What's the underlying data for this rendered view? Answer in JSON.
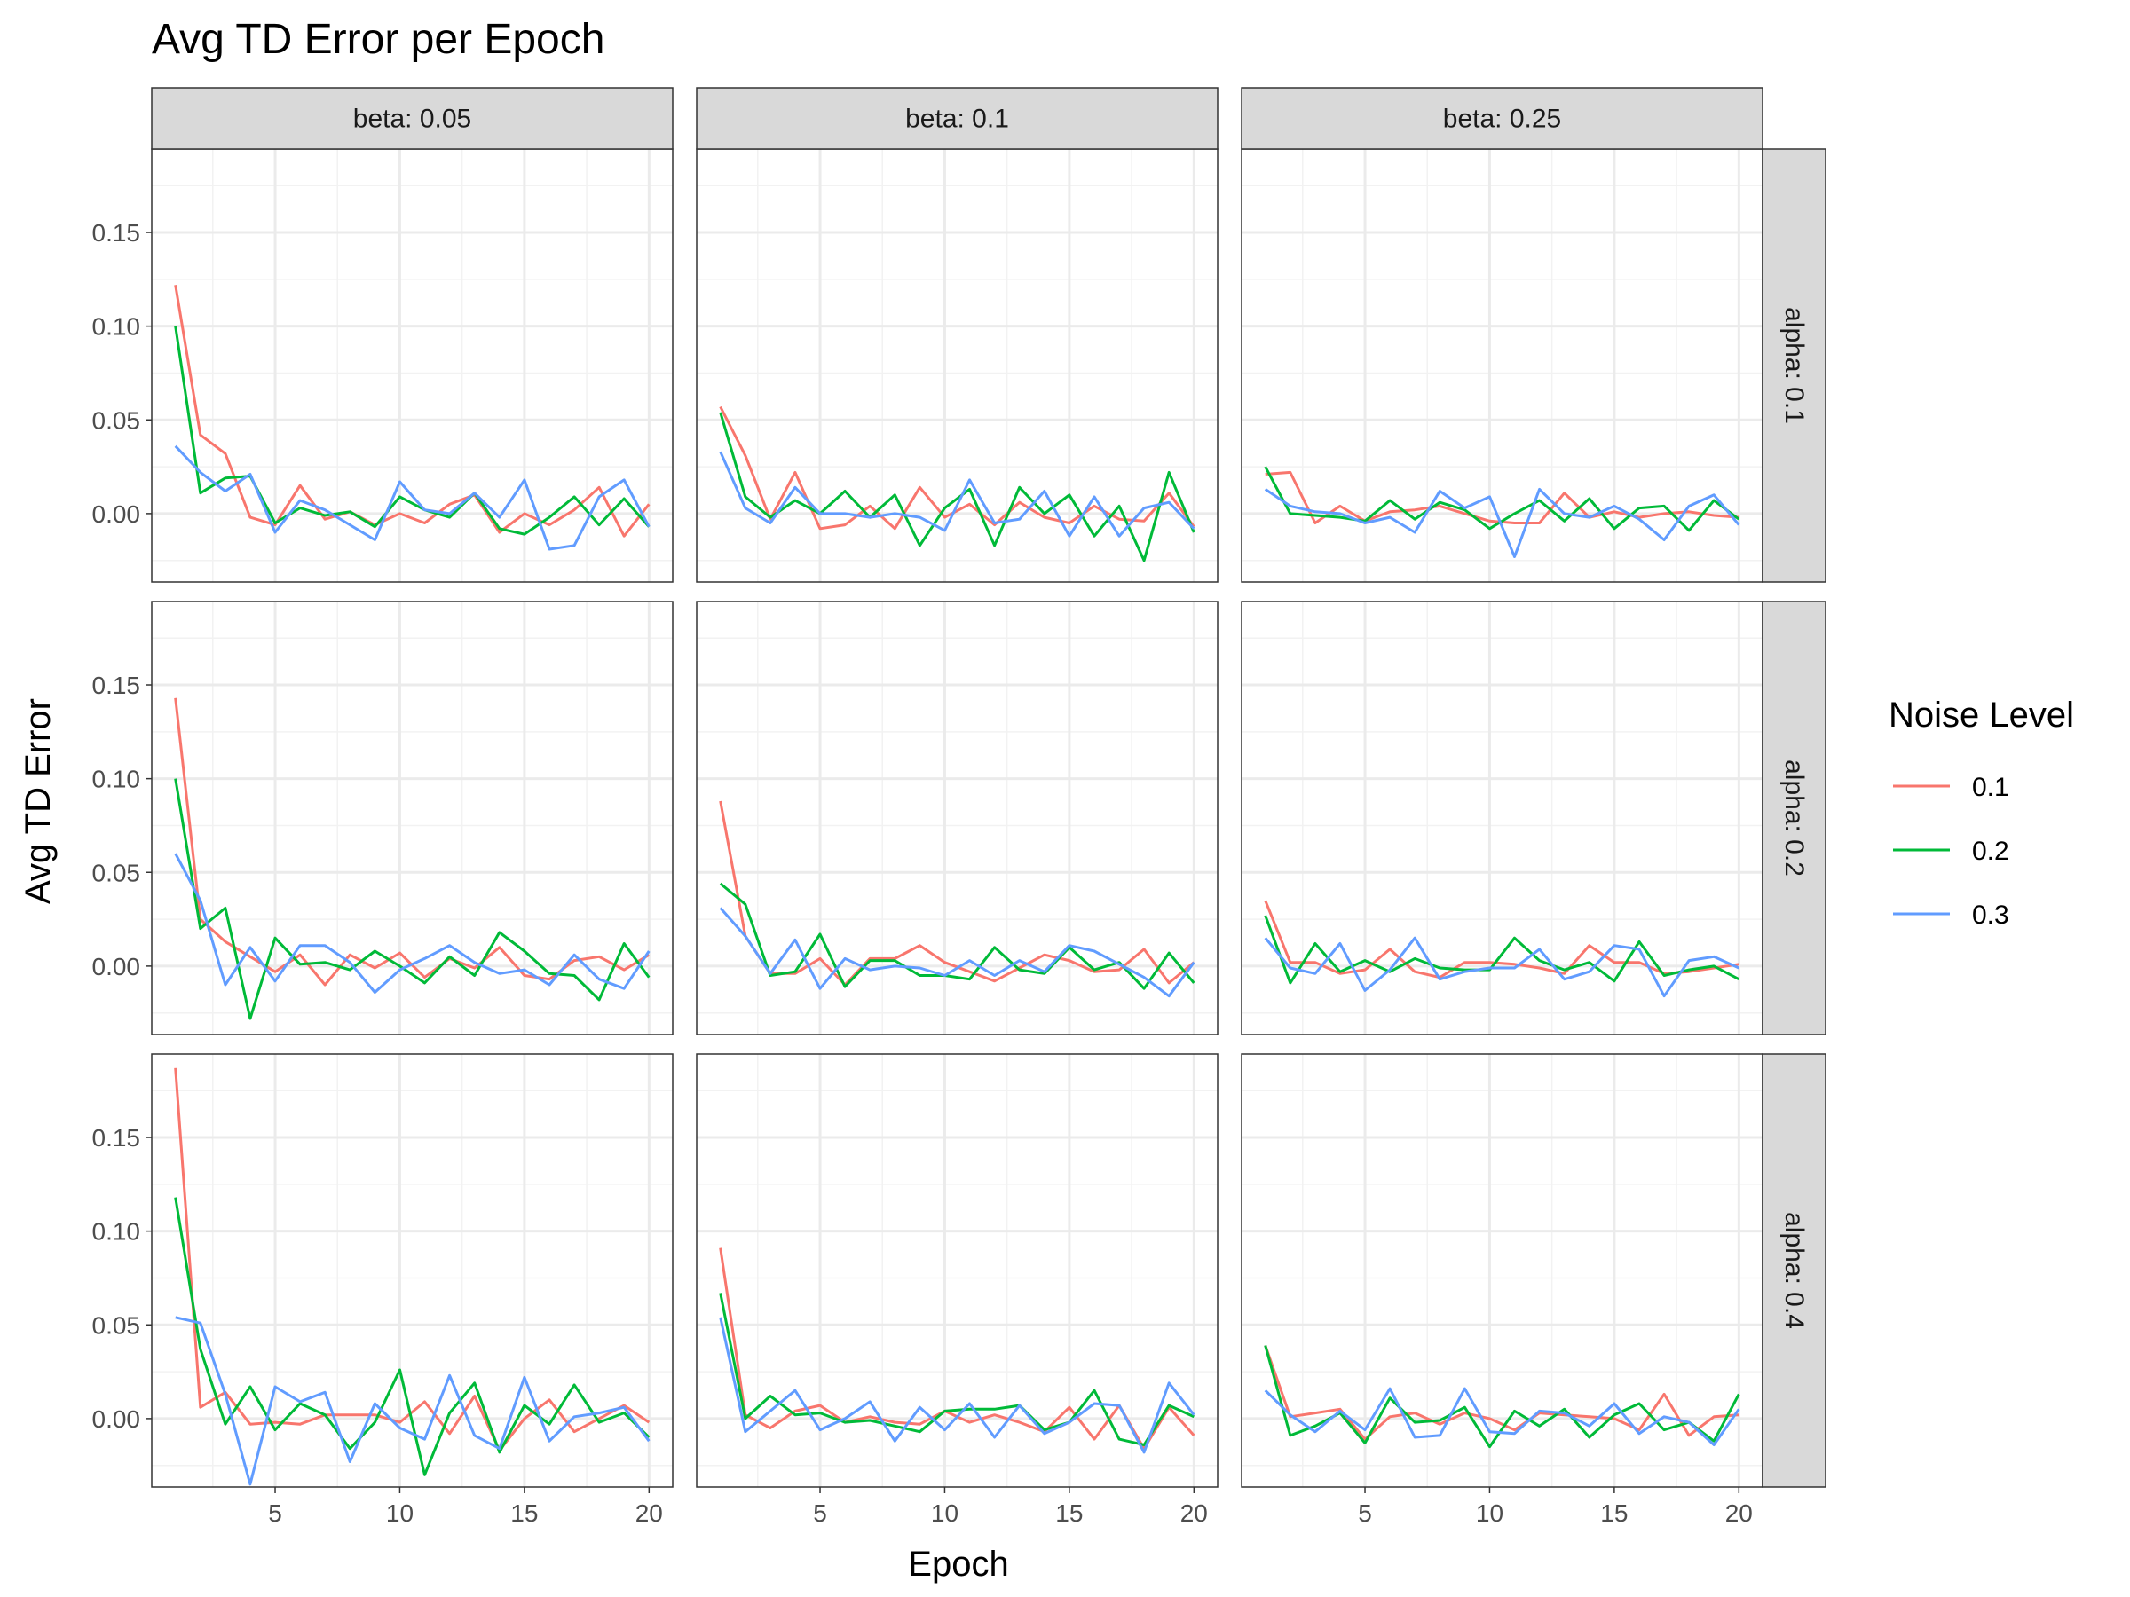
{
  "chart_data": {
    "type": "line",
    "title": "Avg TD Error per Epoch",
    "xlabel": "Epoch",
    "ylabel": "Avg TD Error",
    "legend_title": "Noise Level",
    "legend_position": "right",
    "grid": true,
    "xlim": [
      0.05,
      20.95
    ],
    "ylim": [
      -0.0365,
      0.1945
    ],
    "x_ticks": [
      "5",
      "10",
      "15",
      "20"
    ],
    "y_ticks": [
      "0.00",
      "0.05",
      "0.10",
      "0.15"
    ],
    "col_strips": [
      "beta: 0.05",
      "beta: 0.1",
      "beta: 0.25"
    ],
    "row_strips": [
      "alpha: 0.1",
      "alpha: 0.2",
      "alpha: 0.4"
    ],
    "colors": [
      "#F8766D",
      "#00BA38",
      "#619CFF"
    ],
    "x": [
      1,
      2,
      3,
      4,
      5,
      6,
      7,
      8,
      9,
      10,
      11,
      12,
      13,
      14,
      15,
      16,
      17,
      18,
      19,
      20
    ],
    "series_names": [
      "0.1",
      "0.2",
      "0.3"
    ],
    "panels": [
      {
        "row": 0,
        "col": 0,
        "series": [
          {
            "name": "0.1",
            "values": [
              0.122,
              0.042,
              0.032,
              -0.002,
              -0.006,
              0.015,
              -0.003,
              0.001,
              -0.006,
              0.0,
              -0.005,
              0.005,
              0.01,
              -0.01,
              0.0,
              -0.006,
              0.002,
              0.014,
              -0.012,
              0.005
            ]
          },
          {
            "name": "0.2",
            "values": [
              0.1,
              0.011,
              0.019,
              0.02,
              -0.005,
              0.003,
              -0.001,
              0.001,
              -0.007,
              0.009,
              0.002,
              -0.002,
              0.011,
              -0.008,
              -0.011,
              -0.002,
              0.009,
              -0.006,
              0.008,
              -0.007
            ]
          },
          {
            "name": "0.3",
            "values": [
              0.036,
              0.022,
              0.012,
              0.021,
              -0.01,
              0.007,
              0.002,
              -0.006,
              -0.014,
              0.017,
              0.002,
              0.0,
              0.011,
              -0.002,
              0.018,
              -0.019,
              -0.017,
              0.009,
              0.018,
              -0.007
            ]
          }
        ]
      },
      {
        "row": 0,
        "col": 1,
        "series": [
          {
            "name": "0.1",
            "values": [
              0.057,
              0.031,
              -0.003,
              0.022,
              -0.008,
              -0.006,
              0.004,
              -0.008,
              0.014,
              -0.002,
              0.005,
              -0.006,
              0.006,
              -0.002,
              -0.005,
              0.004,
              -0.003,
              -0.004,
              0.011,
              -0.007
            ]
          },
          {
            "name": "0.2",
            "values": [
              0.054,
              0.009,
              -0.002,
              0.007,
              0.0,
              0.012,
              -0.002,
              0.01,
              -0.017,
              0.003,
              0.013,
              -0.017,
              0.014,
              0.0,
              0.01,
              -0.012,
              0.004,
              -0.025,
              0.022,
              -0.01
            ]
          },
          {
            "name": "0.3",
            "values": [
              0.033,
              0.003,
              -0.005,
              0.014,
              0.0,
              0.0,
              -0.002,
              0.0,
              -0.002,
              -0.009,
              0.018,
              -0.005,
              -0.003,
              0.012,
              -0.012,
              0.009,
              -0.012,
              0.003,
              0.006,
              -0.008
            ]
          }
        ]
      },
      {
        "row": 0,
        "col": 2,
        "series": [
          {
            "name": "0.1",
            "values": [
              0.021,
              0.022,
              -0.005,
              0.004,
              -0.004,
              0.001,
              0.002,
              0.004,
              0.0,
              -0.004,
              -0.005,
              -0.005,
              0.011,
              -0.002,
              0.001,
              -0.002,
              0.0,
              0.001,
              -0.001,
              -0.002
            ]
          },
          {
            "name": "0.2",
            "values": [
              0.025,
              0.0,
              -0.001,
              -0.002,
              -0.004,
              0.007,
              -0.003,
              0.006,
              0.002,
              -0.008,
              0.0,
              0.007,
              -0.004,
              0.008,
              -0.008,
              0.003,
              0.004,
              -0.009,
              0.007,
              -0.003
            ]
          },
          {
            "name": "0.3",
            "values": [
              0.013,
              0.004,
              0.001,
              0.0,
              -0.005,
              -0.002,
              -0.01,
              0.012,
              0.003,
              0.009,
              -0.023,
              0.013,
              0.0,
              -0.002,
              0.004,
              -0.003,
              -0.014,
              0.004,
              0.01,
              -0.006
            ]
          }
        ]
      },
      {
        "row": 1,
        "col": 0,
        "series": [
          {
            "name": "0.1",
            "values": [
              0.143,
              0.025,
              0.013,
              0.005,
              -0.003,
              0.006,
              -0.01,
              0.006,
              -0.001,
              0.007,
              -0.006,
              0.004,
              -0.001,
              0.01,
              -0.005,
              -0.007,
              0.003,
              0.005,
              -0.002,
              0.006
            ]
          },
          {
            "name": "0.2",
            "values": [
              0.1,
              0.02,
              0.031,
              -0.028,
              0.015,
              0.001,
              0.002,
              -0.002,
              0.008,
              0.0,
              -0.009,
              0.005,
              -0.005,
              0.018,
              0.008,
              -0.004,
              -0.005,
              -0.018,
              0.012,
              -0.006
            ]
          },
          {
            "name": "0.3",
            "values": [
              0.06,
              0.035,
              -0.01,
              0.01,
              -0.008,
              0.011,
              0.011,
              0.002,
              -0.014,
              -0.002,
              0.004,
              0.011,
              0.002,
              -0.004,
              -0.002,
              -0.01,
              0.006,
              -0.007,
              -0.012,
              0.008
            ]
          }
        ]
      },
      {
        "row": 1,
        "col": 1,
        "series": [
          {
            "name": "0.1",
            "values": [
              0.088,
              0.016,
              -0.004,
              -0.004,
              0.004,
              -0.01,
              0.004,
              0.004,
              0.011,
              0.002,
              -0.003,
              -0.008,
              -0.001,
              0.006,
              0.003,
              -0.003,
              -0.002,
              0.009,
              -0.009,
              0.002
            ]
          },
          {
            "name": "0.2",
            "values": [
              0.044,
              0.033,
              -0.005,
              -0.003,
              0.017,
              -0.011,
              0.003,
              0.003,
              -0.005,
              -0.005,
              -0.007,
              0.01,
              -0.002,
              -0.004,
              0.01,
              -0.002,
              0.002,
              -0.012,
              0.007,
              -0.009
            ]
          },
          {
            "name": "0.3",
            "values": [
              0.031,
              0.016,
              -0.004,
              0.014,
              -0.012,
              0.004,
              -0.002,
              0.0,
              -0.001,
              -0.005,
              0.003,
              -0.005,
              0.003,
              -0.003,
              0.011,
              0.008,
              0.001,
              -0.006,
              -0.016,
              0.002
            ]
          }
        ]
      },
      {
        "row": 1,
        "col": 2,
        "series": [
          {
            "name": "0.1",
            "values": [
              0.035,
              0.002,
              0.002,
              -0.004,
              -0.002,
              0.009,
              -0.003,
              -0.006,
              0.002,
              0.002,
              0.001,
              -0.001,
              -0.004,
              0.011,
              0.002,
              0.002,
              -0.004,
              -0.003,
              -0.001,
              0.001
            ]
          },
          {
            "name": "0.2",
            "values": [
              0.027,
              -0.009,
              0.012,
              -0.003,
              0.003,
              -0.003,
              0.004,
              -0.001,
              -0.002,
              -0.002,
              0.015,
              0.003,
              -0.002,
              0.002,
              -0.008,
              0.013,
              -0.005,
              -0.002,
              0.0,
              -0.007
            ]
          },
          {
            "name": "0.3",
            "values": [
              0.015,
              -0.001,
              -0.004,
              0.012,
              -0.013,
              -0.002,
              0.015,
              -0.007,
              -0.003,
              -0.001,
              -0.001,
              0.009,
              -0.007,
              -0.003,
              0.011,
              0.009,
              -0.016,
              0.003,
              0.005,
              -0.001
            ]
          }
        ]
      },
      {
        "row": 2,
        "col": 0,
        "series": [
          {
            "name": "0.1",
            "values": [
              0.187,
              0.006,
              0.014,
              -0.003,
              -0.002,
              -0.003,
              0.002,
              0.002,
              0.002,
              -0.002,
              0.009,
              -0.008,
              0.012,
              -0.017,
              0.0,
              0.01,
              -0.007,
              0.0,
              0.007,
              -0.002
            ]
          },
          {
            "name": "0.2",
            "values": [
              0.118,
              0.037,
              -0.003,
              0.017,
              -0.006,
              0.008,
              0.002,
              -0.016,
              -0.002,
              0.026,
              -0.03,
              0.003,
              0.019,
              -0.018,
              0.007,
              -0.003,
              0.018,
              -0.002,
              0.003,
              -0.01
            ]
          },
          {
            "name": "0.3",
            "values": [
              0.054,
              0.051,
              0.013,
              -0.035,
              0.017,
              0.009,
              0.014,
              -0.023,
              0.008,
              -0.005,
              -0.011,
              0.023,
              -0.009,
              -0.016,
              0.022,
              -0.012,
              0.001,
              0.003,
              0.006,
              -0.012
            ]
          }
        ]
      },
      {
        "row": 2,
        "col": 1,
        "series": [
          {
            "name": "0.1",
            "values": [
              0.091,
              0.002,
              -0.005,
              0.004,
              0.007,
              -0.002,
              0.001,
              -0.002,
              -0.003,
              0.004,
              -0.002,
              0.002,
              -0.002,
              -0.007,
              0.006,
              -0.011,
              0.007,
              -0.016,
              0.006,
              -0.009
            ]
          },
          {
            "name": "0.2",
            "values": [
              0.067,
              0.0,
              0.012,
              0.002,
              0.003,
              -0.002,
              -0.001,
              -0.004,
              -0.007,
              0.004,
              0.005,
              0.005,
              0.007,
              -0.006,
              -0.002,
              0.015,
              -0.011,
              -0.014,
              0.007,
              0.001
            ]
          },
          {
            "name": "0.3",
            "values": [
              0.054,
              -0.007,
              0.004,
              0.015,
              -0.006,
              0.0,
              0.009,
              -0.012,
              0.006,
              -0.006,
              0.008,
              -0.01,
              0.007,
              -0.008,
              -0.002,
              0.008,
              0.007,
              -0.018,
              0.019,
              0.002
            ]
          }
        ]
      },
      {
        "row": 2,
        "col": 2,
        "series": [
          {
            "name": "0.1",
            "values": [
              0.039,
              0.001,
              0.003,
              0.005,
              -0.011,
              0.001,
              0.003,
              -0.003,
              0.003,
              0.0,
              -0.006,
              0.003,
              0.002,
              0.001,
              0.0,
              -0.006,
              0.013,
              -0.009,
              0.001,
              0.002
            ]
          },
          {
            "name": "0.2",
            "values": [
              0.039,
              -0.009,
              -0.004,
              0.003,
              -0.013,
              0.011,
              -0.002,
              -0.001,
              0.006,
              -0.015,
              0.004,
              -0.004,
              0.005,
              -0.01,
              0.002,
              0.008,
              -0.006,
              -0.002,
              -0.012,
              0.013
            ]
          },
          {
            "name": "0.3",
            "values": [
              0.015,
              0.002,
              -0.007,
              0.004,
              -0.006,
              0.016,
              -0.01,
              -0.009,
              0.016,
              -0.007,
              -0.008,
              0.004,
              0.003,
              -0.004,
              0.008,
              -0.008,
              0.001,
              -0.002,
              -0.014,
              0.005
            ]
          }
        ]
      }
    ]
  }
}
